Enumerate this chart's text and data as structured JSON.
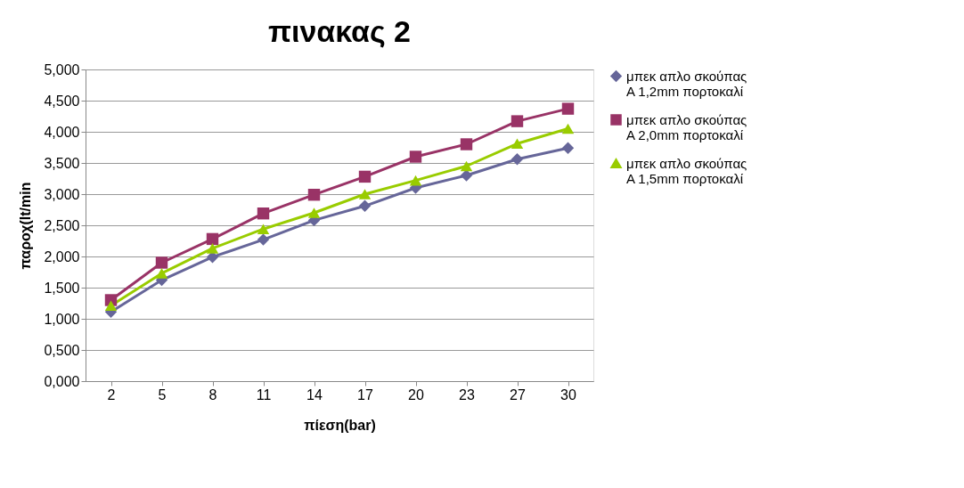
{
  "chart_data": {
    "type": "line",
    "title": "πινακας 2",
    "xlabel": "πίεση(bar)",
    "ylabel": "παροχ(lt/min",
    "categories": [
      "2",
      "5",
      "8",
      "11",
      "14",
      "17",
      "20",
      "23",
      "27",
      "30"
    ],
    "series": [
      {
        "name": "μπεκ απλο σκούπας Α 1,2mm πορτοκαλί",
        "color": "#666699",
        "marker": "diamond",
        "values": [
          1.11,
          1.62,
          1.99,
          2.27,
          2.58,
          2.81,
          3.1,
          3.3,
          3.56,
          3.74
        ]
      },
      {
        "name": "μπεκ απλο σκούπας Α 2,0mm πορτοκαλί",
        "color": "#993366",
        "marker": "square",
        "values": [
          1.3,
          1.9,
          2.28,
          2.69,
          2.99,
          3.28,
          3.6,
          3.8,
          4.17,
          4.37
        ]
      },
      {
        "name": "μπεκ απλο σκούπας Α 1,5mm πορτοκαλί",
        "color": "#99cc00",
        "marker": "triangle",
        "values": [
          1.21,
          1.73,
          2.13,
          2.44,
          2.7,
          3.0,
          3.22,
          3.45,
          3.81,
          4.05
        ]
      }
    ],
    "ylim": [
      0,
      5
    ],
    "yticks": [
      {
        "value": 0,
        "label": "0,000"
      },
      {
        "value": 0.5,
        "label": "0,500"
      },
      {
        "value": 1,
        "label": "1,000"
      },
      {
        "value": 1.5,
        "label": "1,500"
      },
      {
        "value": 2,
        "label": "2,000"
      },
      {
        "value": 2.5,
        "label": "2,500"
      },
      {
        "value": 3,
        "label": "3,000"
      },
      {
        "value": 3.5,
        "label": "3,500"
      },
      {
        "value": 4,
        "label": "4,000"
      },
      {
        "value": 4.5,
        "label": "4,500"
      },
      {
        "value": 5,
        "label": "5,000"
      }
    ],
    "grid": "y",
    "legend": "right",
    "line_style": "solid"
  }
}
